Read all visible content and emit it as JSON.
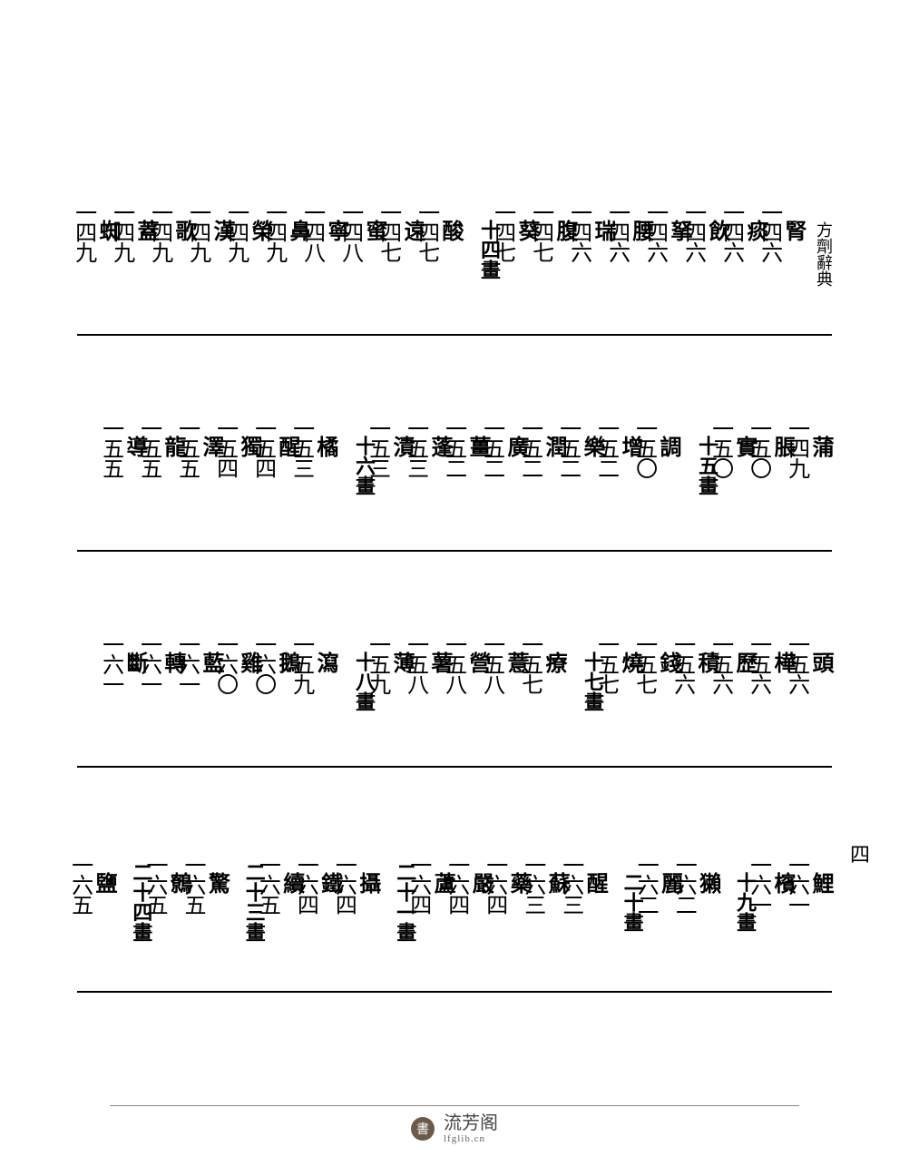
{
  "running_header": "方劑辭典",
  "side_page_number": "四",
  "rows": [
    {
      "items": [
        {
          "type": "entry",
          "char": "腎",
          "page": "一四六"
        },
        {
          "type": "entry",
          "char": "痰",
          "page": "一四六"
        },
        {
          "type": "entry",
          "char": "飲",
          "page": "一四六"
        },
        {
          "type": "entry",
          "char": "拏",
          "page": "一四六"
        },
        {
          "type": "entry",
          "char": "腰",
          "page": "一四六"
        },
        {
          "type": "entry",
          "char": "瑞",
          "page": "一四六"
        },
        {
          "type": "entry",
          "char": "腹",
          "page": "一四七"
        },
        {
          "type": "entry",
          "char": "葵",
          "page": "一四七"
        },
        {
          "type": "section",
          "label": "十四畫"
        },
        {
          "type": "entry",
          "char": "酸",
          "page": "一四七"
        },
        {
          "type": "entry",
          "char": "遠",
          "page": "一四七"
        },
        {
          "type": "entry",
          "char": "蜜",
          "page": "一四八"
        },
        {
          "type": "entry",
          "char": "寧",
          "page": "一四八"
        },
        {
          "type": "entry",
          "char": "鼻",
          "page": "一四九"
        },
        {
          "type": "entry",
          "char": "榮",
          "page": "一四九"
        },
        {
          "type": "entry",
          "char": "漢",
          "page": "一四九"
        },
        {
          "type": "entry",
          "char": "歌",
          "page": "一四九"
        },
        {
          "type": "entry",
          "char": "蓋",
          "page": "一四九"
        },
        {
          "type": "entry",
          "char": "蜘",
          "page": "一四九"
        }
      ],
      "running_header": true
    },
    {
      "items": [
        {
          "type": "entry",
          "char": "蒲",
          "page": "一四九"
        },
        {
          "type": "entry",
          "char": "脹",
          "page": "一五〇"
        },
        {
          "type": "entry",
          "char": "實",
          "page": "一五〇"
        },
        {
          "type": "section",
          "label": "十五畫"
        },
        {
          "type": "entry",
          "char": "調",
          "page": "一五〇"
        },
        {
          "type": "entry",
          "char": "增",
          "page": "一五二"
        },
        {
          "type": "entry",
          "char": "樂",
          "page": "一五二"
        },
        {
          "type": "entry",
          "char": "潤",
          "page": "一五二"
        },
        {
          "type": "entry",
          "char": "廣",
          "page": "一五二"
        },
        {
          "type": "entry",
          "char": "薑",
          "page": "一五二"
        },
        {
          "type": "entry",
          "char": "蓬",
          "page": "一五三"
        },
        {
          "type": "entry",
          "char": "漬",
          "page": "一五三"
        },
        {
          "type": "section",
          "label": "十六畫"
        },
        {
          "type": "entry",
          "char": "橘",
          "page": "一五三"
        },
        {
          "type": "entry",
          "char": "醒",
          "page": "一五四"
        },
        {
          "type": "entry",
          "char": "獨",
          "page": "一五四"
        },
        {
          "type": "entry",
          "char": "澤",
          "page": "一五五"
        },
        {
          "type": "entry",
          "char": "龍",
          "page": "一五五"
        },
        {
          "type": "entry",
          "char": "導",
          "page": "一五五"
        }
      ]
    },
    {
      "items": [
        {
          "type": "entry",
          "char": "頭",
          "page": "一五六"
        },
        {
          "type": "entry",
          "char": "樺",
          "page": "一五六"
        },
        {
          "type": "entry",
          "char": "歷",
          "page": "一五六"
        },
        {
          "type": "entry",
          "char": "積",
          "page": "一五六"
        },
        {
          "type": "entry",
          "char": "錢",
          "page": "一五七"
        },
        {
          "type": "entry",
          "char": "燒",
          "page": "一五七"
        },
        {
          "type": "section",
          "label": "十七畫"
        },
        {
          "type": "entry",
          "char": "療",
          "page": "一五七"
        },
        {
          "type": "entry",
          "char": "薏",
          "page": "一五八"
        },
        {
          "type": "entry",
          "char": "營",
          "page": "一五八"
        },
        {
          "type": "entry",
          "char": "薯",
          "page": "一五八"
        },
        {
          "type": "entry",
          "char": "薄",
          "page": "一五九"
        },
        {
          "type": "section",
          "label": "十八畫"
        },
        {
          "type": "entry",
          "char": "瀉",
          "page": "一五九"
        },
        {
          "type": "entry",
          "char": "鵝",
          "page": "一六〇"
        },
        {
          "type": "entry",
          "char": "雞",
          "page": "一六〇"
        },
        {
          "type": "entry",
          "char": "藍",
          "page": "一六一"
        },
        {
          "type": "entry",
          "char": "轉",
          "page": "一六一"
        },
        {
          "type": "entry",
          "char": "斷",
          "page": "一六一"
        }
      ]
    },
    {
      "items": [
        {
          "type": "entry",
          "char": "鯉",
          "page": "一六一"
        },
        {
          "type": "entry",
          "char": "檳",
          "page": "一六一"
        },
        {
          "type": "section",
          "label": "十九畫"
        },
        {
          "type": "entry",
          "char": "獺",
          "page": "一六二"
        },
        {
          "type": "entry",
          "char": "麗",
          "page": "一六二"
        },
        {
          "type": "section",
          "label": "二十畫"
        },
        {
          "type": "entry",
          "char": "醒",
          "page": "一六三"
        },
        {
          "type": "entry",
          "char": "蘇",
          "page": "一六三"
        },
        {
          "type": "entry",
          "char": "藥",
          "page": "一六四"
        },
        {
          "type": "entry",
          "char": "嚴",
          "page": "一六四"
        },
        {
          "type": "entry",
          "char": "蘆",
          "page": "一六四"
        },
        {
          "type": "section",
          "label": "二十一畫"
        },
        {
          "type": "entry",
          "char": "攝",
          "page": "一六四"
        },
        {
          "type": "entry",
          "char": "鐵",
          "page": "一六四"
        },
        {
          "type": "entry",
          "char": "續",
          "page": "一六五"
        },
        {
          "type": "section",
          "label": "二十三畫"
        },
        {
          "type": "entry",
          "char": "驚",
          "page": "一六五"
        },
        {
          "type": "entry",
          "char": "鷯",
          "page": "一六五"
        },
        {
          "type": "section",
          "label": "二十四畫"
        },
        {
          "type": "entry",
          "char": "鹽",
          "page": "一六五"
        }
      ]
    }
  ],
  "footer": {
    "site_cn": "流芳阁",
    "site_en": "lfglib.cn",
    "icon_glyph": "書"
  },
  "colors": {
    "text": "#000000",
    "background": "#ffffff",
    "footer_text": "#444444",
    "footer_sub": "#666666"
  }
}
